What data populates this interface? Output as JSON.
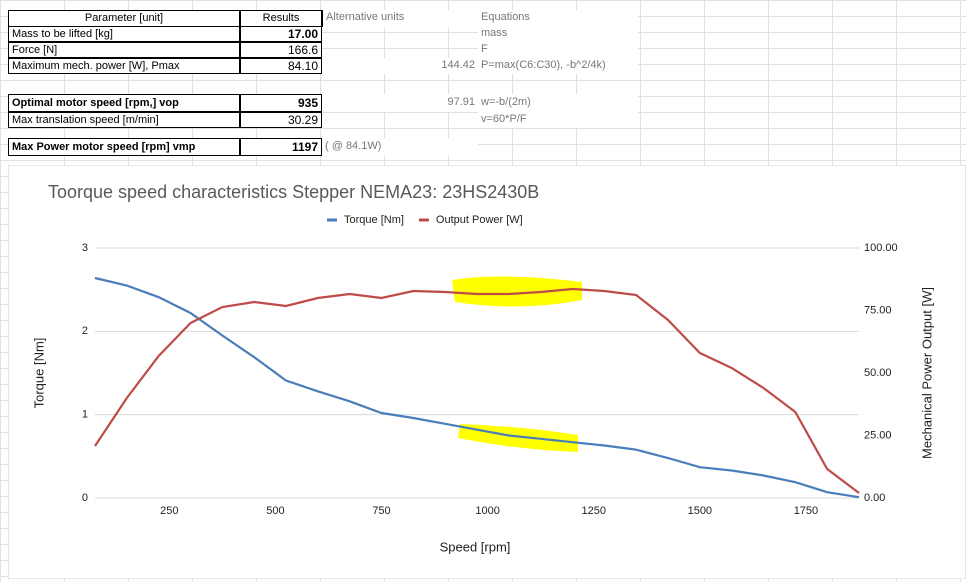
{
  "sheet": {
    "headers": {
      "parameter": "Parameter [unit]",
      "result": "Results",
      "alt": "Alternative units",
      "equation": "Equations"
    },
    "rows": [
      {
        "parameter": "Mass to be lifted [kg]",
        "result": "17.00",
        "result_bold": true,
        "equation": "mass"
      },
      {
        "parameter": "Force [N]",
        "result": "166.6",
        "equation": "F"
      },
      {
        "parameter": "Maximum mech. power [W], Pmax",
        "result": "84.10",
        "alt": "144.42",
        "equation": "P=max(C6:C30), -b^2/4k)"
      },
      {
        "parameter": "Optimal motor speed [rpm,] vop",
        "parameter_bold": true,
        "result": "935",
        "result_bold": true,
        "alt": "97.91",
        "equation": "w=-b/(2m)"
      },
      {
        "parameter": "Max translation speed [m/min]",
        "result": "30.29",
        "equation": "v=60*P/F"
      },
      {
        "parameter": "Max Power motor speed [rpm] vmp",
        "parameter_bold": true,
        "result": "1197",
        "result_bold": true,
        "alt": "( @ 84.1W)"
      }
    ]
  },
  "chart_data": {
    "type": "line",
    "title": "Toorque speed characteristics Stepper NEMA23: 23HS2430B",
    "x_label": "Speed [rpm]",
    "y_label": "Torque [Nm]",
    "y2_label": "Mechanical Power Output [W]",
    "x": [
      75,
      150,
      225,
      300,
      375,
      450,
      525,
      600,
      675,
      750,
      825,
      900,
      975,
      1050,
      1125,
      1200,
      1275,
      1350,
      1425,
      1500,
      1575,
      1650,
      1725,
      1800,
      1875
    ],
    "series": [
      {
        "name": "Torque [Nm]",
        "color": "#4a7ebb",
        "values": [
          2.64,
          2.55,
          2.41,
          2.22,
          1.95,
          1.69,
          1.41,
          1.28,
          1.16,
          1.02,
          0.96,
          0.89,
          0.82,
          0.75,
          0.71,
          0.67,
          0.63,
          0.58,
          0.48,
          0.37,
          0.33,
          0.27,
          0.19,
          0.07,
          0.01
        ]
      },
      {
        "name": "Output Power [W]",
        "color": "#be4b48",
        "axis": "y2",
        "values": [
          20.8,
          40,
          56.8,
          70,
          76.4,
          78.4,
          76.8,
          80,
          81.6,
          80,
          82.8,
          82.4,
          81.6,
          81.6,
          82.4,
          83.6,
          82.8,
          81.2,
          71.2,
          58,
          52,
          44,
          34.4,
          11.6,
          2
        ]
      }
    ],
    "xlim": [
      75,
      1875
    ],
    "xticks": [
      250,
      500,
      750,
      1000,
      1250,
      1500,
      1750
    ],
    "ylim": [
      0,
      3
    ],
    "yticks": [
      0,
      1,
      2,
      3
    ],
    "y2lim": [
      0,
      100
    ],
    "y2ticks": [
      {
        "value": 0,
        "label": "0.00"
      },
      {
        "value": 25,
        "label": "25.00"
      },
      {
        "value": 50,
        "label": "50.00"
      },
      {
        "value": 75,
        "label": "75.00"
      },
      {
        "value": 100,
        "label": "100.00"
      }
    ],
    "grid": true,
    "legend": "top"
  }
}
